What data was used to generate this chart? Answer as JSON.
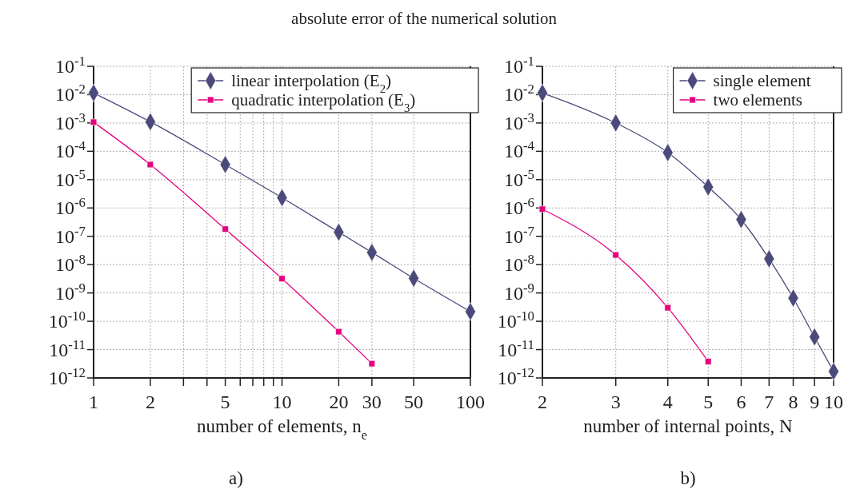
{
  "chart_data": [
    {
      "type": "line",
      "title": "absolute error of the numerical solution",
      "xlabel": "number of elements, n$_{e}$",
      "annotations": [
        "a)"
      ],
      "log": "xy",
      "grid": true,
      "legend": "top right",
      "xlim": [
        1,
        100
      ],
      "xticks": [
        1,
        2,
        {
          "value": 3,
          "label": null
        },
        {
          "value": 4,
          "label": null
        },
        5,
        {
          "value": 6,
          "label": null
        },
        {
          "value": 7,
          "label": null
        },
        {
          "value": 8,
          "label": null
        },
        {
          "value": 9,
          "label": null
        },
        10,
        20,
        30,
        50,
        100
      ],
      "ylim": [
        1e-12,
        0.1
      ],
      "yticks": [
        {
          "value": 1e-12,
          "label": "10$^{-12}$"
        },
        {
          "value": 1e-11,
          "label": "10$^{-11}$"
        },
        {
          "value": 1e-10,
          "label": "10$^{-10}$"
        },
        {
          "value": 1e-09,
          "label": "10$^{-9}$"
        },
        {
          "value": 1e-08,
          "label": "10$^{-8}$"
        },
        {
          "value": 1e-07,
          "label": "10$^{-7}$"
        },
        {
          "value": 1e-06,
          "label": "10$^{-6}$"
        },
        {
          "value": 1e-05,
          "label": "10$^{-5}$"
        },
        {
          "value": 0.0001,
          "label": "10$^{-4}$"
        },
        {
          "value": 0.001,
          "label": "10$^{-3}$"
        },
        {
          "value": 0.01,
          "label": "10$^{-2}$"
        },
        {
          "value": 0.1,
          "label": "10$^{-1}$"
        }
      ],
      "series": [
        {
          "name": "linear interpolation (E$_{2}$)",
          "color": "#4b4a7a",
          "marker": "diamond",
          "x": [
            1,
            2,
            5,
            10,
            20,
            30,
            50,
            100
          ],
          "values": [
            0.0115,
            0.0011,
            3.4e-05,
            2.3e-06,
            1.4e-07,
            2.7e-08,
            3.3e-09,
            2.2e-10
          ]
        },
        {
          "name": "quadratic interpolation (E$_{3}$)",
          "color": "#e6007e",
          "marker": "square",
          "x": [
            1,
            2,
            5,
            10,
            20,
            30
          ],
          "values": [
            0.00107,
            3.4e-05,
            1.8e-07,
            3.2e-09,
            4.3e-11,
            3.2e-12
          ]
        }
      ]
    },
    {
      "type": "line",
      "xlabel": "number of internal points, N",
      "annotations": [
        "b)"
      ],
      "log": "xy",
      "grid": true,
      "legend": "top right",
      "xlim": [
        2,
        10
      ],
      "xticks": [
        2,
        3,
        4,
        5,
        6,
        7,
        8,
        9,
        10
      ],
      "ylim": [
        1e-12,
        0.1
      ],
      "yticks": [
        {
          "value": 1e-12,
          "label": "10$^{-12}$"
        },
        {
          "value": 1e-11,
          "label": "10$^{-11}$"
        },
        {
          "value": 1e-10,
          "label": "10$^{-10}$"
        },
        {
          "value": 1e-09,
          "label": "10$^{-9}$"
        },
        {
          "value": 1e-08,
          "label": "10$^{-8}$"
        },
        {
          "value": 1e-07,
          "label": "10$^{-7}$"
        },
        {
          "value": 1e-06,
          "label": "10$^{-6}$"
        },
        {
          "value": 1e-05,
          "label": "10$^{-5}$"
        },
        {
          "value": 0.0001,
          "label": "10$^{-4}$"
        },
        {
          "value": 0.001,
          "label": "10$^{-3}$"
        },
        {
          "value": 0.01,
          "label": "10$^{-2}$"
        },
        {
          "value": 0.1,
          "label": "10$^{-1}$"
        }
      ],
      "series": [
        {
          "name": "single element",
          "color": "#4b4a7a",
          "marker": "diamond",
          "x": [
            2,
            3,
            4,
            5,
            6,
            7,
            8,
            9,
            10
          ],
          "values": [
            0.0115,
            0.001,
            9e-05,
            5.5e-06,
            3.9e-07,
            1.6e-08,
            6.6e-10,
            2.8e-11,
            1.7e-12
          ]
        },
        {
          "name": "two elements",
          "color": "#e6007e",
          "marker": "square",
          "x": [
            2,
            3,
            4,
            5
          ],
          "values": [
            9.1e-07,
            2.2e-08,
            3e-10,
            3.8e-12
          ]
        }
      ]
    }
  ]
}
